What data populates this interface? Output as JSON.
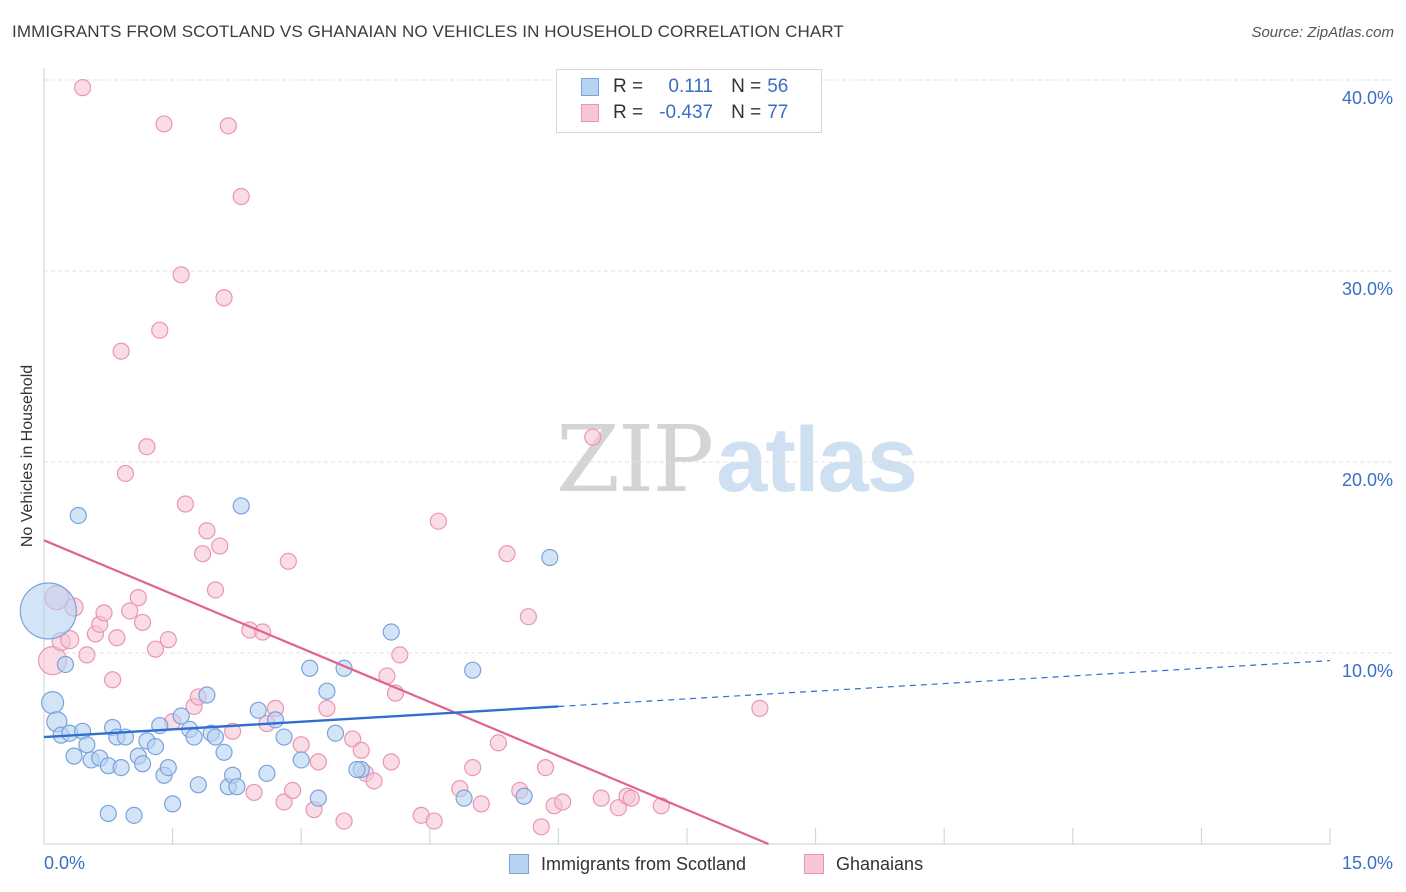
{
  "title": "IMMIGRANTS FROM SCOTLAND VS GHANAIAN NO VEHICLES IN HOUSEHOLD CORRELATION CHART",
  "source": "Source: ZipAtlas.com",
  "watermark": {
    "zip": "ZIP",
    "atlas": "atlas"
  },
  "legend": {
    "rows": [
      {
        "r_label": "R =",
        "r_value": "0.111",
        "n_label": "N =",
        "n_value": "56"
      },
      {
        "r_label": "R =",
        "r_value": "-0.437",
        "n_label": "N =",
        "n_value": "77"
      }
    ]
  },
  "bottom_legend": {
    "series1": "Immigrants from Scotland",
    "series2": "Ghanaians"
  },
  "chart_data": {
    "type": "scatter",
    "title": "IMMIGRANTS FROM SCOTLAND VS GHANAIAN NO VEHICLES IN HOUSEHOLD CORRELATION CHART",
    "xlabel": "",
    "ylabel": "No Vehicles in Household",
    "xlim": [
      0,
      15
    ],
    "ylim": [
      0,
      40
    ],
    "x_tick_labels": [
      "0.0%",
      "15.0%"
    ],
    "y_ticks": [
      10,
      20,
      30,
      40
    ],
    "y_tick_labels": [
      "10.0%",
      "20.0%",
      "30.0%",
      "40.0%"
    ],
    "colors": {
      "scotland_fill": "#b8d2f2",
      "scotland_stroke": "#7aa3dc",
      "scotland_line": "#2f6fd0",
      "ghana_fill": "#f7c5d6",
      "ghana_stroke": "#eb95b3",
      "ghana_line": "#e0638e",
      "axis_text": "#3a6fc4",
      "grid": "#e2e2e2"
    },
    "series": [
      {
        "name": "Immigrants from Scotland",
        "R": 0.111,
        "N": 56,
        "trend": {
          "x0": 0.0,
          "y0": 5.6,
          "x1": 6.0,
          "y1": 7.2,
          "x_dash_end": 15.0,
          "y_dash_end": 9.6
        },
        "points": [
          [
            0.05,
            12.2,
            28
          ],
          [
            0.1,
            7.4,
            11
          ],
          [
            0.15,
            6.4,
            10
          ],
          [
            0.4,
            17.2,
            8
          ],
          [
            0.25,
            9.4,
            8
          ],
          [
            0.2,
            5.7,
            8
          ],
          [
            0.3,
            5.8,
            8
          ],
          [
            0.35,
            4.6,
            8
          ],
          [
            0.45,
            5.9,
            8
          ],
          [
            0.5,
            5.2,
            8
          ],
          [
            0.55,
            4.4,
            8
          ],
          [
            0.65,
            4.5,
            8
          ],
          [
            0.75,
            4.1,
            8
          ],
          [
            0.8,
            6.1,
            8
          ],
          [
            0.85,
            5.6,
            8
          ],
          [
            0.9,
            4.0,
            8
          ],
          [
            0.95,
            5.6,
            8
          ],
          [
            1.1,
            4.6,
            8
          ],
          [
            1.15,
            4.2,
            8
          ],
          [
            1.2,
            5.4,
            8
          ],
          [
            1.3,
            5.1,
            8
          ],
          [
            1.35,
            6.2,
            8
          ],
          [
            1.4,
            3.6,
            8
          ],
          [
            1.45,
            4.0,
            8
          ],
          [
            1.6,
            6.7,
            8
          ],
          [
            1.7,
            6.0,
            8
          ],
          [
            1.75,
            5.6,
            8
          ],
          [
            1.8,
            3.1,
            8
          ],
          [
            1.9,
            7.8,
            8
          ],
          [
            1.95,
            5.8,
            8
          ],
          [
            2.0,
            5.6,
            8
          ],
          [
            2.1,
            4.8,
            8
          ],
          [
            2.15,
            3.0,
            8
          ],
          [
            2.2,
            3.6,
            8
          ],
          [
            2.3,
            17.7,
            8
          ],
          [
            2.5,
            7.0,
            8
          ],
          [
            2.6,
            3.7,
            8
          ],
          [
            2.7,
            6.5,
            8
          ],
          [
            2.8,
            5.6,
            8
          ],
          [
            3.0,
            4.4,
            8
          ],
          [
            3.1,
            9.2,
            8
          ],
          [
            3.2,
            2.4,
            8
          ],
          [
            3.3,
            8.0,
            8
          ],
          [
            3.4,
            5.8,
            8
          ],
          [
            3.5,
            9.2,
            8
          ],
          [
            3.7,
            3.9,
            8
          ],
          [
            4.05,
            11.1,
            8
          ],
          [
            4.9,
            2.4,
            8
          ],
          [
            5.0,
            9.1,
            8
          ],
          [
            5.6,
            2.5,
            8
          ],
          [
            5.9,
            15.0,
            8
          ],
          [
            1.5,
            2.1,
            8
          ],
          [
            0.75,
            1.6,
            8
          ],
          [
            1.05,
            1.5,
            8
          ],
          [
            3.65,
            3.9,
            8
          ],
          [
            2.25,
            3.0,
            8
          ]
        ]
      },
      {
        "name": "Ghanaians",
        "R": -0.437,
        "N": 77,
        "trend": {
          "x0": 0.0,
          "y0": 15.9,
          "x1": 8.45,
          "y1": 0.0
        },
        "points": [
          [
            0.1,
            9.6,
            14
          ],
          [
            0.15,
            12.9,
            12
          ],
          [
            0.2,
            10.6,
            9
          ],
          [
            0.3,
            10.7,
            9
          ],
          [
            0.35,
            12.4,
            9
          ],
          [
            0.45,
            39.6,
            8
          ],
          [
            0.5,
            9.9,
            8
          ],
          [
            0.6,
            11.0,
            8
          ],
          [
            0.65,
            11.5,
            8
          ],
          [
            0.7,
            12.1,
            8
          ],
          [
            0.8,
            8.6,
            8
          ],
          [
            0.85,
            10.8,
            8
          ],
          [
            0.9,
            25.8,
            8
          ],
          [
            0.95,
            19.4,
            8
          ],
          [
            1.0,
            12.2,
            8
          ],
          [
            1.1,
            12.9,
            8
          ],
          [
            1.15,
            11.6,
            8
          ],
          [
            1.2,
            20.8,
            8
          ],
          [
            1.3,
            10.2,
            8
          ],
          [
            1.35,
            26.9,
            8
          ],
          [
            1.4,
            37.7,
            8
          ],
          [
            1.45,
            10.7,
            8
          ],
          [
            1.5,
            6.4,
            8
          ],
          [
            1.6,
            29.8,
            8
          ],
          [
            1.65,
            17.8,
            8
          ],
          [
            1.75,
            7.2,
            8
          ],
          [
            1.8,
            7.7,
            8
          ],
          [
            1.85,
            15.2,
            8
          ],
          [
            1.9,
            16.4,
            8
          ],
          [
            2.0,
            13.3,
            8
          ],
          [
            2.05,
            15.6,
            8
          ],
          [
            2.1,
            28.6,
            8
          ],
          [
            2.15,
            37.6,
            8
          ],
          [
            2.2,
            5.9,
            8
          ],
          [
            2.3,
            33.9,
            8
          ],
          [
            2.4,
            11.2,
            8
          ],
          [
            2.45,
            2.7,
            8
          ],
          [
            2.55,
            11.1,
            8
          ],
          [
            2.6,
            6.3,
            8
          ],
          [
            2.7,
            7.1,
            8
          ],
          [
            2.8,
            2.2,
            8
          ],
          [
            2.85,
            14.8,
            8
          ],
          [
            2.9,
            2.8,
            8
          ],
          [
            3.0,
            5.2,
            8
          ],
          [
            3.15,
            1.8,
            8
          ],
          [
            3.2,
            4.3,
            8
          ],
          [
            3.3,
            7.1,
            8
          ],
          [
            3.5,
            1.2,
            8
          ],
          [
            3.6,
            5.5,
            8
          ],
          [
            3.7,
            4.9,
            8
          ],
          [
            3.75,
            3.7,
            8
          ],
          [
            3.85,
            3.3,
            8
          ],
          [
            4.0,
            8.8,
            8
          ],
          [
            4.05,
            4.3,
            8
          ],
          [
            4.1,
            7.9,
            8
          ],
          [
            4.15,
            9.9,
            8
          ],
          [
            4.4,
            1.5,
            8
          ],
          [
            4.55,
            1.2,
            8
          ],
          [
            4.6,
            16.9,
            8
          ],
          [
            4.85,
            2.9,
            8
          ],
          [
            5.0,
            4.0,
            8
          ],
          [
            5.1,
            2.1,
            8
          ],
          [
            5.3,
            5.3,
            8
          ],
          [
            5.4,
            15.2,
            8
          ],
          [
            5.55,
            2.8,
            8
          ],
          [
            5.65,
            11.9,
            8
          ],
          [
            5.8,
            0.9,
            8
          ],
          [
            5.85,
            4.0,
            8
          ],
          [
            5.95,
            2.0,
            8
          ],
          [
            6.05,
            2.2,
            8
          ],
          [
            6.4,
            21.3,
            8
          ],
          [
            6.5,
            2.4,
            8
          ],
          [
            6.7,
            1.9,
            8
          ],
          [
            6.8,
            2.5,
            8
          ],
          [
            6.85,
            2.4,
            8
          ],
          [
            7.2,
            2.0,
            8
          ],
          [
            8.35,
            7.1,
            8
          ]
        ]
      }
    ]
  }
}
